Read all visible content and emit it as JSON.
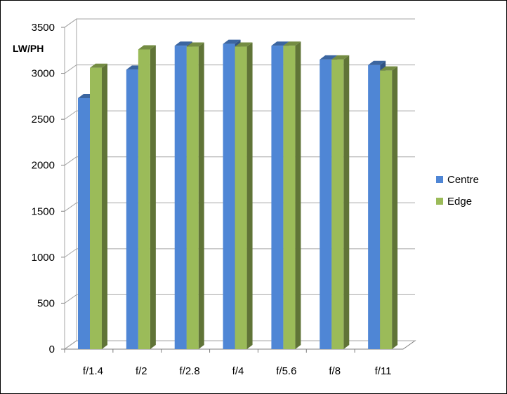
{
  "chart_data": {
    "type": "bar",
    "title": "",
    "xlabel": "",
    "ylabel": "LW/PH",
    "ylim": [
      0,
      3500
    ],
    "yticks": [
      0,
      500,
      1000,
      1500,
      2000,
      2500,
      3000,
      3500
    ],
    "categories": [
      "f/1.4",
      "f/2",
      "f/2.8",
      "f/4",
      "f/5.6",
      "f/8",
      "f/11"
    ],
    "series": [
      {
        "name": "Centre",
        "color": "#4f86d5",
        "values": [
          2730,
          3040,
          3300,
          3320,
          3300,
          3150,
          3090
        ]
      },
      {
        "name": "Edge",
        "color": "#9bbb59",
        "values": [
          3060,
          3260,
          3290,
          3290,
          3300,
          3150,
          3030
        ]
      }
    ],
    "grid": true,
    "legend": "right",
    "style": "3d-clustered-column"
  }
}
